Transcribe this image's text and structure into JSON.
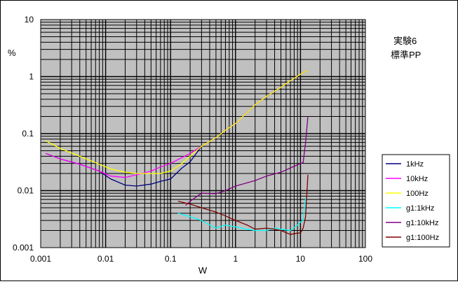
{
  "chart_data": {
    "type": "line",
    "xscale": "log",
    "yscale": "log",
    "xlim": [
      0.001,
      100
    ],
    "ylim": [
      0.001,
      10
    ],
    "xlabel": "W",
    "ylabel": "%",
    "x_ticks": [
      "0.001",
      "0.01",
      "0.1",
      "1",
      "10",
      "100"
    ],
    "y_ticks": [
      "10",
      "1",
      "0.1",
      "0.01",
      "0.001"
    ],
    "grid": true,
    "legend": "right",
    "annotation": [
      "実験6",
      "標準PP"
    ],
    "series": [
      {
        "name": "1kHz",
        "color": "#000080",
        "x": [
          0.0012,
          0.002,
          0.004,
          0.008,
          0.012,
          0.02,
          0.03,
          0.05,
          0.07,
          0.1,
          0.15,
          0.2,
          0.3,
          0.5,
          0.7,
          1,
          2,
          3,
          5,
          7,
          10,
          13
        ],
        "y": [
          0.045,
          0.036,
          0.029,
          0.022,
          0.016,
          0.0125,
          0.012,
          0.013,
          0.0145,
          0.016,
          0.025,
          0.032,
          0.06,
          0.085,
          0.115,
          0.15,
          0.32,
          0.45,
          0.65,
          0.85,
          1.1,
          1.3
        ]
      },
      {
        "name": "10kHz",
        "color": "#ff00ff",
        "x": [
          0.0012,
          0.002,
          0.004,
          0.008,
          0.012,
          0.02,
          0.03,
          0.05,
          0.07,
          0.1,
          0.15,
          0.2,
          0.3,
          0.5,
          0.7,
          1,
          2,
          3,
          5,
          7,
          10,
          13
        ],
        "y": [
          0.045,
          0.036,
          0.029,
          0.022,
          0.018,
          0.017,
          0.019,
          0.022,
          0.026,
          0.03,
          0.038,
          0.045,
          0.06,
          0.085,
          0.115,
          0.15,
          0.32,
          0.45,
          0.65,
          0.85,
          1.1,
          1.3
        ]
      },
      {
        "name": "100Hz",
        "color": "#ffff00",
        "x": [
          0.0012,
          0.002,
          0.004,
          0.008,
          0.012,
          0.02,
          0.03,
          0.05,
          0.07,
          0.1,
          0.15,
          0.2,
          0.3,
          0.5,
          0.7,
          1,
          2,
          3,
          5,
          7,
          10,
          13
        ],
        "y": [
          0.075,
          0.055,
          0.04,
          0.029,
          0.024,
          0.021,
          0.02,
          0.02,
          0.02,
          0.022,
          0.03,
          0.04,
          0.06,
          0.085,
          0.115,
          0.15,
          0.32,
          0.45,
          0.65,
          0.85,
          1.1,
          1.3
        ]
      },
      {
        "name": "g1:1kHz",
        "color": "#00ffff",
        "x": [
          0.13,
          0.2,
          0.3,
          0.4,
          0.5,
          0.7,
          1,
          1.5,
          2,
          3,
          4,
          5,
          7,
          9,
          10,
          11,
          12
        ],
        "y": [
          0.004,
          0.0035,
          0.003,
          0.0025,
          0.0022,
          0.0025,
          0.0023,
          0.0021,
          0.002,
          0.002,
          0.0022,
          0.0021,
          0.002,
          0.0025,
          0.0028,
          0.003,
          0.0075
        ]
      },
      {
        "name": "g1:10kHz",
        "color": "#800080",
        "x": [
          0.17,
          0.2,
          0.3,
          0.5,
          0.7,
          1,
          2,
          3,
          5,
          7,
          10,
          11,
          12,
          13
        ],
        "y": [
          0.0055,
          0.0065,
          0.009,
          0.0088,
          0.01,
          0.012,
          0.015,
          0.018,
          0.021,
          0.025,
          0.03,
          0.031,
          0.07,
          0.2
        ]
      },
      {
        "name": "g1:100Hz",
        "color": "#800000",
        "x": [
          0.13,
          0.2,
          0.3,
          0.5,
          0.7,
          1,
          1.5,
          2,
          3,
          4,
          5,
          7,
          9,
          10,
          11,
          12,
          13
        ],
        "y": [
          0.0065,
          0.0058,
          0.005,
          0.0042,
          0.0036,
          0.003,
          0.0025,
          0.0021,
          0.0022,
          0.0021,
          0.002,
          0.0017,
          0.0018,
          0.0018,
          0.0022,
          0.0035,
          0.019
        ]
      }
    ]
  }
}
